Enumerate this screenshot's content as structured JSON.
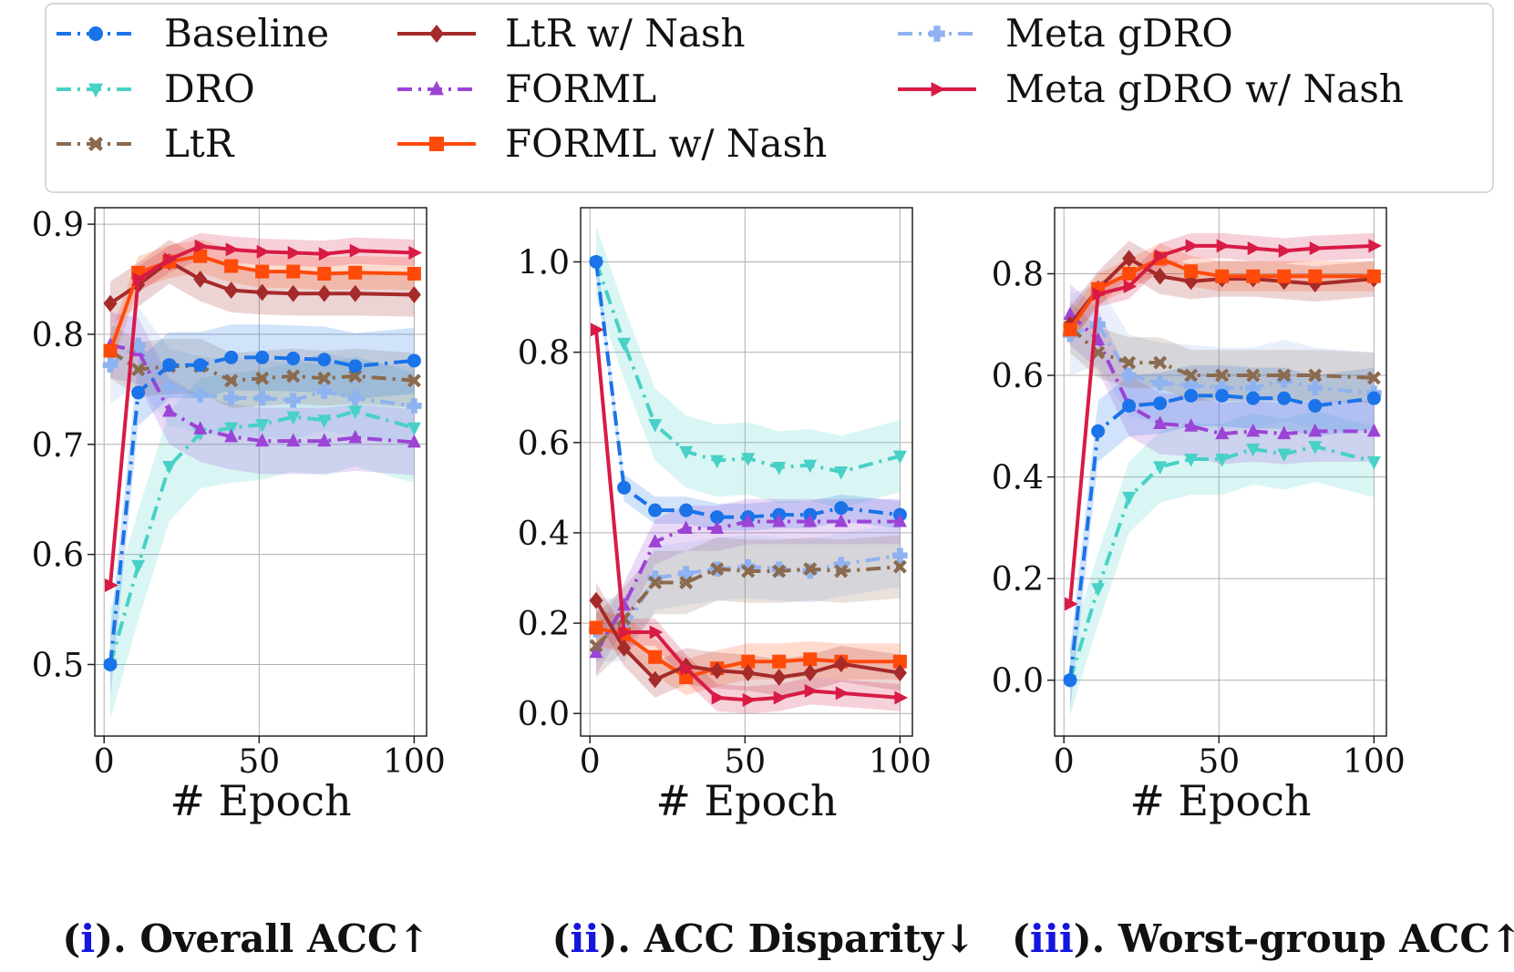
{
  "figure": {
    "xlabel": "# Epoch",
    "captions": [
      {
        "open": "(",
        "num": "i",
        "rest": "). Overall ACC↑"
      },
      {
        "open": "(",
        "num": "ii",
        "rest": "). ACC Disparity↓"
      },
      {
        "open": "(",
        "num": "iii",
        "rest": "). Worst-group ACC↑"
      }
    ]
  },
  "legend": [
    {
      "key": "baseline",
      "label": "Baseline",
      "color": "#1a73e8",
      "marker": "circle",
      "dash": "dashdot"
    },
    {
      "key": "ltr_nash",
      "label": "LtR w/ Nash",
      "color": "#a52a2a",
      "marker": "diamond",
      "dash": "solid"
    },
    {
      "key": "meta_gdro",
      "label": "Meta gDRO",
      "color": "#8fb2f0",
      "marker": "plus",
      "dash": "dashdot"
    },
    {
      "key": "dro",
      "label": "DRO",
      "color": "#48d1c6",
      "marker": "tri_down",
      "dash": "dashdot"
    },
    {
      "key": "forml",
      "label": "FORML",
      "color": "#9b44d6",
      "marker": "tri_up",
      "dash": "dashdot"
    },
    {
      "key": "meta_gdro_nash",
      "label": "Meta gDRO w/ Nash",
      "color": "#d81b45",
      "marker": "tri_right",
      "dash": "solid"
    },
    {
      "key": "ltr",
      "label": "LtR",
      "color": "#8b6a4e",
      "marker": "cross",
      "dash": "dashdot"
    },
    {
      "key": "forml_nash",
      "label": "FORML w/ Nash",
      "color": "#ff4a0a",
      "marker": "square",
      "dash": "solid"
    }
  ],
  "chart_data": [
    {
      "type": "line",
      "title": "Overall ACC↑",
      "xlabel": "# Epoch",
      "ylabel": "",
      "xlim": [
        -3,
        104
      ],
      "ylim": [
        0.435,
        0.915
      ],
      "xticks": [
        0,
        50,
        100
      ],
      "yticks": [
        0.5,
        0.6,
        0.7,
        0.8,
        0.9
      ],
      "ytick_labels": [
        "0.5",
        "0.6",
        "0.7",
        "0.8",
        "0.9"
      ],
      "x": [
        2,
        11,
        21,
        31,
        41,
        51,
        61,
        71,
        81,
        100
      ],
      "series": [
        {
          "key": "dro",
          "values": [
            0.5,
            0.59,
            0.68,
            0.71,
            0.715,
            0.718,
            0.725,
            0.722,
            0.73,
            0.715
          ],
          "band": 0.05
        },
        {
          "key": "forml",
          "values": [
            0.79,
            0.785,
            0.73,
            0.714,
            0.707,
            0.703,
            0.703,
            0.703,
            0.706,
            0.702
          ],
          "band": 0.03
        },
        {
          "key": "meta_gdro",
          "values": [
            0.772,
            0.79,
            0.752,
            0.745,
            0.742,
            0.742,
            0.74,
            0.748,
            0.742,
            0.735
          ],
          "band": 0.035
        },
        {
          "key": "ltr",
          "values": [
            0.785,
            0.768,
            0.771,
            0.771,
            0.758,
            0.76,
            0.762,
            0.76,
            0.762,
            0.758
          ],
          "band": 0.025
        },
        {
          "key": "baseline",
          "values": [
            0.5,
            0.747,
            0.772,
            0.772,
            0.779,
            0.779,
            0.778,
            0.777,
            0.771,
            0.776
          ],
          "band": 0.03
        },
        {
          "key": "ltr_nash",
          "values": [
            0.828,
            0.845,
            0.866,
            0.85,
            0.84,
            0.838,
            0.837,
            0.837,
            0.837,
            0.836
          ],
          "band": 0.02
        },
        {
          "key": "forml_nash",
          "values": [
            0.785,
            0.856,
            0.866,
            0.871,
            0.862,
            0.857,
            0.857,
            0.855,
            0.856,
            0.855
          ],
          "band": 0.015
        },
        {
          "key": "meta_gdro_nash",
          "values": [
            0.572,
            0.85,
            0.868,
            0.88,
            0.877,
            0.875,
            0.874,
            0.873,
            0.876,
            0.874
          ],
          "band": 0.012
        }
      ]
    },
    {
      "type": "line",
      "title": "ACC Disparity↓",
      "xlabel": "# Epoch",
      "ylabel": "",
      "xlim": [
        -3,
        104
      ],
      "ylim": [
        -0.05,
        1.12
      ],
      "xticks": [
        0,
        50,
        100
      ],
      "yticks": [
        0.0,
        0.2,
        0.4,
        0.6,
        0.8,
        1.0
      ],
      "ytick_labels": [
        "0.0",
        "0.2",
        "0.4",
        "0.6",
        "0.8",
        "1.0"
      ],
      "x": [
        2,
        11,
        21,
        31,
        41,
        51,
        61,
        71,
        81,
        100
      ],
      "series": [
        {
          "key": "dro",
          "values": [
            1.0,
            0.82,
            0.64,
            0.58,
            0.56,
            0.565,
            0.545,
            0.55,
            0.535,
            0.57
          ],
          "band": 0.08
        },
        {
          "key": "baseline",
          "values": [
            1.0,
            0.5,
            0.45,
            0.45,
            0.435,
            0.435,
            0.44,
            0.44,
            0.455,
            0.44
          ],
          "band": 0.03
        },
        {
          "key": "forml",
          "values": [
            0.135,
            0.24,
            0.38,
            0.41,
            0.41,
            0.425,
            0.425,
            0.425,
            0.425,
            0.425
          ],
          "band": 0.05
        },
        {
          "key": "meta_gdro",
          "values": [
            0.185,
            0.185,
            0.3,
            0.31,
            0.32,
            0.325,
            0.32,
            0.315,
            0.33,
            0.35
          ],
          "band": 0.07
        },
        {
          "key": "ltr",
          "values": [
            0.15,
            0.21,
            0.29,
            0.29,
            0.32,
            0.315,
            0.315,
            0.32,
            0.315,
            0.325
          ],
          "band": 0.07
        },
        {
          "key": "forml_nash",
          "values": [
            0.19,
            0.175,
            0.125,
            0.08,
            0.1,
            0.115,
            0.115,
            0.12,
            0.115,
            0.115
          ],
          "band": 0.04
        },
        {
          "key": "ltr_nash",
          "values": [
            0.25,
            0.145,
            0.075,
            0.105,
            0.095,
            0.09,
            0.08,
            0.09,
            0.11,
            0.09
          ],
          "band": 0.04
        },
        {
          "key": "meta_gdro_nash",
          "values": [
            0.85,
            0.18,
            0.18,
            0.1,
            0.035,
            0.03,
            0.035,
            0.05,
            0.045,
            0.035
          ],
          "band": 0.03
        }
      ]
    },
    {
      "type": "line",
      "title": "Worst-group ACC↑",
      "xlabel": "# Epoch",
      "ylabel": "",
      "xlim": [
        -3,
        104
      ],
      "ylim": [
        -0.11,
        0.93
      ],
      "xticks": [
        0,
        50,
        100
      ],
      "yticks": [
        0.0,
        0.2,
        0.4,
        0.6,
        0.8
      ],
      "ytick_labels": [
        "0.0",
        "0.2",
        "0.4",
        "0.6",
        "0.8"
      ],
      "x": [
        2,
        11,
        21,
        31,
        41,
        51,
        61,
        71,
        81,
        100
      ],
      "series": [
        {
          "key": "dro",
          "values": [
            0.0,
            0.18,
            0.36,
            0.42,
            0.435,
            0.435,
            0.455,
            0.445,
            0.46,
            0.43
          ],
          "band": 0.07
        },
        {
          "key": "forml",
          "values": [
            0.72,
            0.67,
            0.54,
            0.505,
            0.5,
            0.485,
            0.49,
            0.485,
            0.49,
            0.49
          ],
          "band": 0.06
        },
        {
          "key": "meta_gdro",
          "values": [
            0.68,
            0.7,
            0.6,
            0.585,
            0.58,
            0.575,
            0.575,
            0.59,
            0.575,
            0.565
          ],
          "band": 0.08
        },
        {
          "key": "baseline",
          "values": [
            0.0,
            0.49,
            0.54,
            0.545,
            0.56,
            0.56,
            0.555,
            0.555,
            0.54,
            0.555
          ],
          "band": 0.06
        },
        {
          "key": "ltr",
          "values": [
            0.695,
            0.645,
            0.625,
            0.625,
            0.6,
            0.6,
            0.6,
            0.6,
            0.6,
            0.595
          ],
          "band": 0.05
        },
        {
          "key": "ltr_nash",
          "values": [
            0.7,
            0.77,
            0.83,
            0.795,
            0.785,
            0.79,
            0.79,
            0.785,
            0.78,
            0.79
          ],
          "band": 0.035
        },
        {
          "key": "forml_nash",
          "values": [
            0.69,
            0.77,
            0.8,
            0.83,
            0.805,
            0.795,
            0.795,
            0.795,
            0.795,
            0.795
          ],
          "band": 0.03
        },
        {
          "key": "meta_gdro_nash",
          "values": [
            0.15,
            0.76,
            0.775,
            0.835,
            0.855,
            0.855,
            0.85,
            0.845,
            0.85,
            0.855
          ],
          "band": 0.025
        }
      ]
    }
  ]
}
